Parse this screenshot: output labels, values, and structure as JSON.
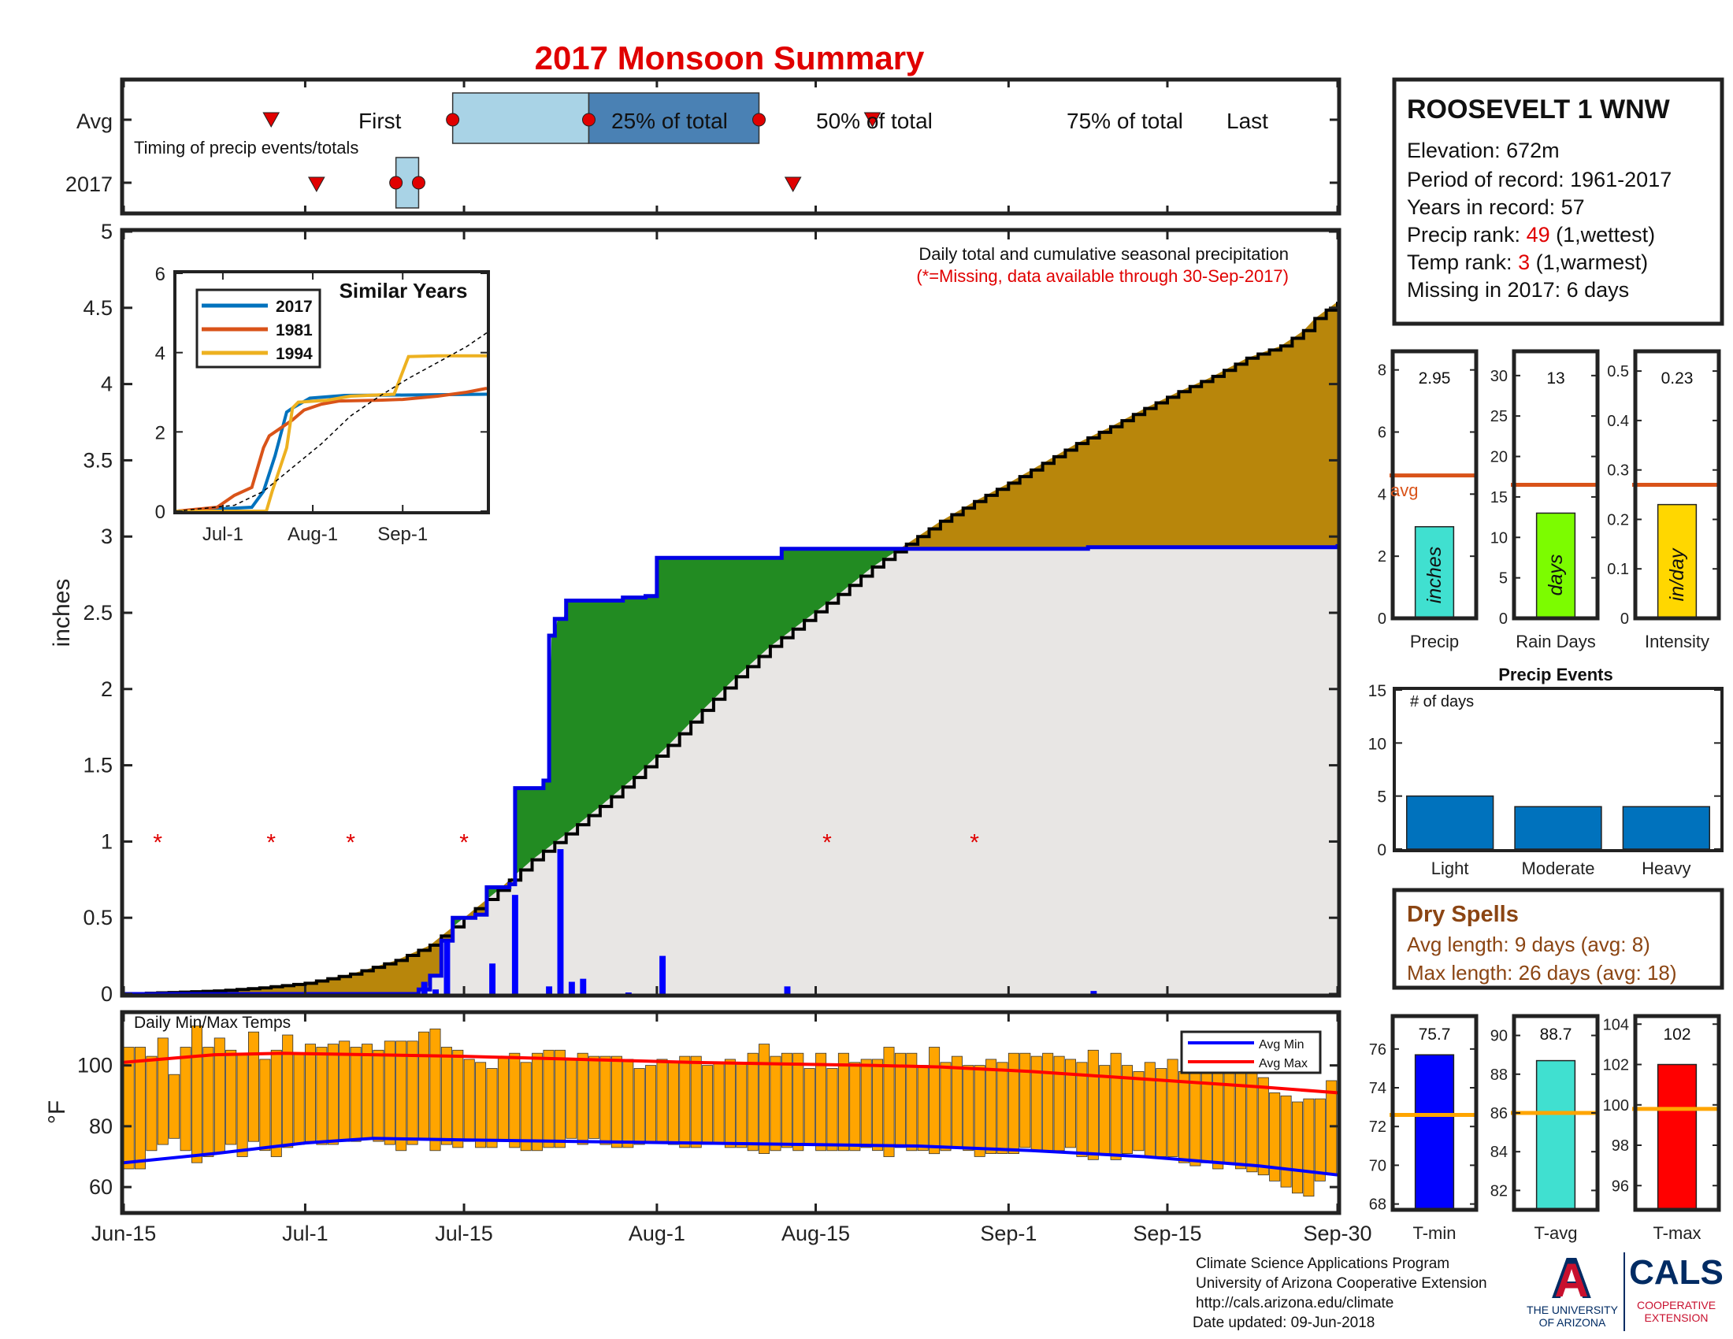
{
  "title": "2017 Monsoon Summary",
  "colors": {
    "title": "#e00000",
    "q25": "#a9d3e6",
    "q50": "#4a81b4",
    "marker": "#e00000",
    "cum2017": "#0000e6",
    "cumAvg": "#000000",
    "above": "#228b22",
    "below": "#b8860b",
    "fillAvg": "#e8e6e4",
    "dailyBar": "#0000ff",
    "tempBar": "#ffa500",
    "avgMin": "#0000ff",
    "avgMax": "#ff0000",
    "y2017": "#0072bd",
    "y1981": "#d95319",
    "y1994": "#edb120",
    "avgLine": "#d95319",
    "precipBar": "#40e0d0",
    "rainBar": "#7cfc00",
    "intensityBar": "#ffd700",
    "eventBar": "#0072bd",
    "tminBar": "#0000ff",
    "tavgBar": "#40e0d0",
    "tmaxBar": "#ff0000",
    "tempAvgLine": "#ffa500",
    "drySpell": "#8b4513"
  },
  "timing": {
    "row_avg": "Avg",
    "row_2017": "2017",
    "subtitle": "Timing of precip events/totals",
    "first": "First",
    "q25": "25% of total",
    "q50": "50% of total",
    "q75": "75% of total",
    "last": "Last",
    "avg_days": {
      "first": 13,
      "q25": 29,
      "q50": 41,
      "q75": 56,
      "last": 66
    },
    "y2017_days": {
      "first": 17,
      "q25": 24,
      "q50": 26,
      "q75": 59
    }
  },
  "main": {
    "ylabel": "inches",
    "annotation": "Daily total and cumulative seasonal precipitation",
    "missing_note": "(*=Missing, data available through 30-Sep-2017)",
    "missing_symbol": "*"
  },
  "temps": {
    "label": "Daily Min/Max Temps",
    "ylabel": "°F",
    "legend_min": "Avg Min",
    "legend_max": "Avg Max"
  },
  "similar": {
    "title": "Similar Years",
    "legend": [
      "2017",
      "1981",
      "1994"
    ]
  },
  "station": {
    "name": "ROOSEVELT 1 WNW",
    "elevation": "Elevation: 672m",
    "period": "Period of record: 1961-2017",
    "years": "Years in record: 57",
    "precip_rank_prefix": "Precip rank: ",
    "precip_rank": "49",
    "precip_rank_suffix": " (1,wettest)",
    "temp_rank_prefix": "Temp rank: ",
    "temp_rank": "3",
    "temp_rank_suffix": " (1,warmest)",
    "missing": "Missing in 2017: 6 days"
  },
  "stats": {
    "precip_value": "2.95",
    "precip_unit": "inches",
    "precip_label": "Precip",
    "avg_label": "avg",
    "rain_value": "13",
    "rain_unit": "days",
    "rain_label": "Rain Days",
    "intensity_value": "0.23",
    "intensity_unit": "in/day",
    "intensity_label": "Intensity"
  },
  "events": {
    "title": "Precip Events",
    "ylabel": "# of days"
  },
  "dry": {
    "title": "Dry Spells",
    "avg": "Avg length: 9 days (avg: 8)",
    "max": "Max length: 26 days (avg: 18)"
  },
  "tstats": {
    "tmin_value": "75.7",
    "tmin_label": "T-min",
    "tavg_value": "88.7",
    "tavg_label": "T-avg",
    "tmax_value": "102",
    "tmax_label": "T-max"
  },
  "footer": {
    "line1": "Climate Science Applications Program",
    "line2": "University of Arizona Cooperative Extension",
    "line3": "http://cals.arizona.edu/climate",
    "line4": " Date updated: 09-Jun-2018",
    "ua_logo": "A",
    "ua_text1": "THE UNIVERSITY",
    "ua_text2": "OF ARIZONA",
    "cals_logo": "CALS",
    "cals_text1": "COOPERATIVE",
    "cals_text2": "EXTENSION"
  },
  "chart_data": [
    {
      "type": "line",
      "title": "",
      "xlabel": "",
      "ylabel": "inches",
      "x_domain": [
        "2017-06-15",
        "2017-09-30"
      ],
      "x_ticks": [
        "Jun-15",
        "Jul-1",
        "Jul-15",
        "Aug-1",
        "Aug-15",
        "Sep-1",
        "Sep-15",
        "Sep-30"
      ],
      "x_tick_days": [
        0,
        16,
        30,
        47,
        61,
        78,
        92,
        107
      ],
      "ylim": [
        0,
        5
      ],
      "y_ticks": [
        "0",
        "0.5",
        "1",
        "1.5",
        "2",
        "2.5",
        "3",
        "3.5",
        "4",
        "4.5",
        "5"
      ],
      "cumulative_2017": [
        [
          0,
          0
        ],
        [
          26,
          0.03
        ],
        [
          27,
          0.12
        ],
        [
          28,
          0.35
        ],
        [
          29,
          0.5
        ],
        [
          31,
          0.52
        ],
        [
          32,
          0.7
        ],
        [
          34,
          0.72
        ],
        [
          34.5,
          1.35
        ],
        [
          37,
          1.4
        ],
        [
          37.5,
          2.35
        ],
        [
          38,
          2.46
        ],
        [
          39,
          2.58
        ],
        [
          44,
          2.6
        ],
        [
          46,
          2.61
        ],
        [
          47,
          2.86
        ],
        [
          58,
          2.92
        ],
        [
          66,
          2.92
        ],
        [
          85,
          2.93
        ],
        [
          107,
          2.95
        ]
      ],
      "cumulative_avg": [
        [
          0,
          0
        ],
        [
          4,
          0.01
        ],
        [
          8,
          0.02
        ],
        [
          12,
          0.04
        ],
        [
          16,
          0.07
        ],
        [
          20,
          0.13
        ],
        [
          24,
          0.22
        ],
        [
          27,
          0.32
        ],
        [
          30,
          0.5
        ],
        [
          33,
          0.68
        ],
        [
          36,
          0.88
        ],
        [
          39,
          1.05
        ],
        [
          42,
          1.23
        ],
        [
          45,
          1.42
        ],
        [
          48,
          1.63
        ],
        [
          51,
          1.86
        ],
        [
          54,
          2.08
        ],
        [
          57,
          2.28
        ],
        [
          60,
          2.45
        ],
        [
          63,
          2.62
        ],
        [
          66,
          2.8
        ],
        [
          69,
          2.95
        ],
        [
          72,
          3.1
        ],
        [
          75,
          3.23
        ],
        [
          78,
          3.35
        ],
        [
          81,
          3.48
        ],
        [
          84,
          3.61
        ],
        [
          87,
          3.72
        ],
        [
          90,
          3.84
        ],
        [
          93,
          3.95
        ],
        [
          96,
          4.05
        ],
        [
          99,
          4.17
        ],
        [
          102,
          4.25
        ],
        [
          104,
          4.35
        ],
        [
          105,
          4.43
        ],
        [
          107,
          4.54
        ]
      ],
      "daily_2017": [
        [
          26,
          0.08
        ],
        [
          27,
          0.03
        ],
        [
          28,
          0.35
        ],
        [
          32,
          0.2
        ],
        [
          34,
          0.65
        ],
        [
          37,
          0.05
        ],
        [
          38,
          0.95
        ],
        [
          39,
          0.08
        ],
        [
          40,
          0.1
        ],
        [
          44,
          0.01
        ],
        [
          47,
          0.25
        ],
        [
          58,
          0.05
        ],
        [
          85,
          0.02
        ]
      ],
      "missing_days": [
        3,
        13,
        20,
        30,
        62,
        75
      ],
      "missing_y": 1
    },
    {
      "type": "bar",
      "title": "",
      "ylabel": "°F",
      "ylim": [
        52,
        117
      ],
      "y_ticks": [
        "60",
        "80",
        "100"
      ],
      "avg_min_points": [
        [
          0,
          68
        ],
        [
          8,
          71
        ],
        [
          16,
          74.5
        ],
        [
          22,
          76
        ],
        [
          30,
          75.5
        ],
        [
          40,
          75
        ],
        [
          50,
          74.5
        ],
        [
          60,
          74
        ],
        [
          70,
          73.5
        ],
        [
          80,
          72
        ],
        [
          90,
          70
        ],
        [
          100,
          67
        ],
        [
          107,
          64
        ]
      ],
      "avg_max_points": [
        [
          0,
          101
        ],
        [
          8,
          103.5
        ],
        [
          14,
          104
        ],
        [
          22,
          103.5
        ],
        [
          30,
          103
        ],
        [
          40,
          102
        ],
        [
          50,
          101
        ],
        [
          58,
          100.5
        ],
        [
          66,
          100
        ],
        [
          72,
          99.5
        ],
        [
          80,
          98
        ],
        [
          90,
          95.5
        ],
        [
          100,
          93
        ],
        [
          107,
          91
        ]
      ],
      "tmin": [
        66,
        66,
        72,
        74,
        76,
        72,
        68,
        70,
        71,
        74,
        70,
        75,
        72,
        70,
        73,
        74,
        75,
        74,
        74,
        75,
        75,
        76,
        75,
        74,
        72,
        74,
        76,
        72,
        74,
        73,
        75,
        73,
        73,
        75,
        73,
        72,
        72,
        73,
        73,
        76,
        74,
        76,
        74,
        73,
        73,
        74,
        75,
        75,
        74,
        73,
        73,
        74,
        74,
        73,
        73,
        72,
        71,
        72,
        73,
        72,
        74,
        72,
        72,
        72,
        72,
        73,
        72,
        70,
        73,
        72,
        72,
        71,
        72,
        73,
        72,
        70,
        71,
        71,
        71,
        73,
        72,
        72,
        72,
        73,
        70,
        69,
        71,
        69,
        71,
        72,
        70,
        70,
        70,
        68,
        67,
        68,
        66,
        68,
        66,
        65,
        64,
        62,
        60,
        58,
        57,
        62,
        64
      ],
      "tmax": [
        106,
        106,
        103,
        109,
        97,
        106,
        113,
        106,
        109,
        105,
        104,
        111,
        102,
        105,
        110,
        104,
        107,
        106,
        107,
        108,
        106,
        107,
        105,
        108,
        108,
        108,
        111,
        112,
        106,
        105,
        102,
        101,
        99,
        103,
        104,
        101,
        104,
        105,
        105,
        102,
        104,
        103,
        103,
        103,
        102,
        99,
        100,
        102,
        101,
        103,
        103,
        100,
        101,
        102,
        101,
        104,
        107,
        103,
        104,
        104,
        99,
        104,
        99,
        104,
        101,
        102,
        102,
        106,
        104,
        104,
        100,
        106,
        101,
        103,
        100,
        100,
        102,
        101,
        104,
        104,
        103,
        104,
        103,
        102,
        101,
        105,
        100,
        104,
        100,
        98,
        101,
        99,
        102,
        98,
        99,
        103,
        101,
        101,
        100,
        99,
        96,
        91,
        90,
        88,
        89,
        89,
        95
      ]
    },
    {
      "type": "line",
      "title": "Similar Years",
      "x_ticks": [
        "Jul-1",
        "Aug-1",
        "Sep-1"
      ],
      "x_tick_days": [
        16,
        47,
        78
      ],
      "ylim": [
        0,
        6
      ],
      "y_ticks": [
        "0",
        "2",
        "4",
        "6"
      ],
      "series": [
        {
          "name": "2017",
          "points": [
            [
              0,
              0
            ],
            [
              26,
              0.1
            ],
            [
              30,
              0.5
            ],
            [
              34,
              1.4
            ],
            [
              38,
              2.5
            ],
            [
              40,
              2.6
            ],
            [
              46,
              2.85
            ],
            [
              58,
              2.92
            ],
            [
              80,
              2.93
            ],
            [
              107,
              2.95
            ]
          ]
        },
        {
          "name": "1981",
          "points": [
            [
              0,
              0
            ],
            [
              14,
              0.1
            ],
            [
              20,
              0.4
            ],
            [
              26,
              0.6
            ],
            [
              30,
              1.6
            ],
            [
              32,
              1.9
            ],
            [
              36,
              2.1
            ],
            [
              40,
              2.3
            ],
            [
              44,
              2.55
            ],
            [
              50,
              2.7
            ],
            [
              56,
              2.78
            ],
            [
              70,
              2.8
            ],
            [
              78,
              2.82
            ],
            [
              90,
              2.9
            ],
            [
              100,
              3.0
            ],
            [
              107,
              3.1
            ]
          ]
        },
        {
          "name": "1994",
          "points": [
            [
              0,
              0
            ],
            [
              31,
              0
            ],
            [
              33,
              0.5
            ],
            [
              38,
              1.6
            ],
            [
              40,
              2.6
            ],
            [
              42,
              2.75
            ],
            [
              52,
              2.8
            ],
            [
              60,
              2.9
            ],
            [
              75,
              2.95
            ],
            [
              80,
              3.9
            ],
            [
              90,
              3.92
            ],
            [
              107,
              3.92
            ]
          ]
        },
        {
          "name": "avg",
          "points": [
            [
              0,
              0
            ],
            [
              20,
              0.15
            ],
            [
              30,
              0.5
            ],
            [
              40,
              1.1
            ],
            [
              50,
              1.7
            ],
            [
              60,
              2.4
            ],
            [
              70,
              2.9
            ],
            [
              80,
              3.35
            ],
            [
              90,
              3.75
            ],
            [
              100,
              4.15
            ],
            [
              107,
              4.5
            ]
          ]
        }
      ]
    },
    {
      "type": "bar",
      "title": "",
      "charts": [
        {
          "label": "Precip",
          "value": 2.95,
          "avg": 4.6,
          "ylim": [
            0,
            8.6
          ],
          "y_ticks": [
            "0",
            "2",
            "4",
            "6",
            "8"
          ]
        },
        {
          "label": "Rain Days",
          "value": 13,
          "avg": 16.5,
          "ylim": [
            0,
            33
          ],
          "y_ticks": [
            "0",
            "5",
            "10",
            "15",
            "20",
            "25",
            "30"
          ]
        },
        {
          "label": "Intensity",
          "value": 0.23,
          "avg": 0.27,
          "ylim": [
            0,
            0.54
          ],
          "y_ticks": [
            "0",
            "0.1",
            "0.2",
            "0.3",
            "0.4",
            "0.5"
          ]
        }
      ]
    },
    {
      "type": "bar",
      "title": "Precip Events",
      "categories": [
        "Light",
        "Moderate",
        "Heavy"
      ],
      "values": [
        5,
        4,
        4
      ],
      "ylim": [
        0,
        15
      ],
      "y_ticks": [
        "0",
        "5",
        "10",
        "15"
      ]
    },
    {
      "type": "bar",
      "title": "",
      "charts": [
        {
          "label": "T-min",
          "value": 75.7,
          "avg": 72.6,
          "ylim": [
            67.7,
            77.7
          ],
          "y_ticks": [
            "68",
            "70",
            "72",
            "74",
            "76"
          ]
        },
        {
          "label": "T-avg",
          "value": 88.7,
          "avg": 86.0,
          "ylim": [
            81.0,
            91.0
          ],
          "y_ticks": [
            "82",
            "84",
            "86",
            "88",
            "90"
          ]
        },
        {
          "label": "T-max",
          "value": 102,
          "avg": 99.8,
          "ylim": [
            94.8,
            104.4
          ],
          "y_ticks": [
            "96",
            "98",
            "100",
            "102",
            "104"
          ]
        }
      ]
    }
  ]
}
